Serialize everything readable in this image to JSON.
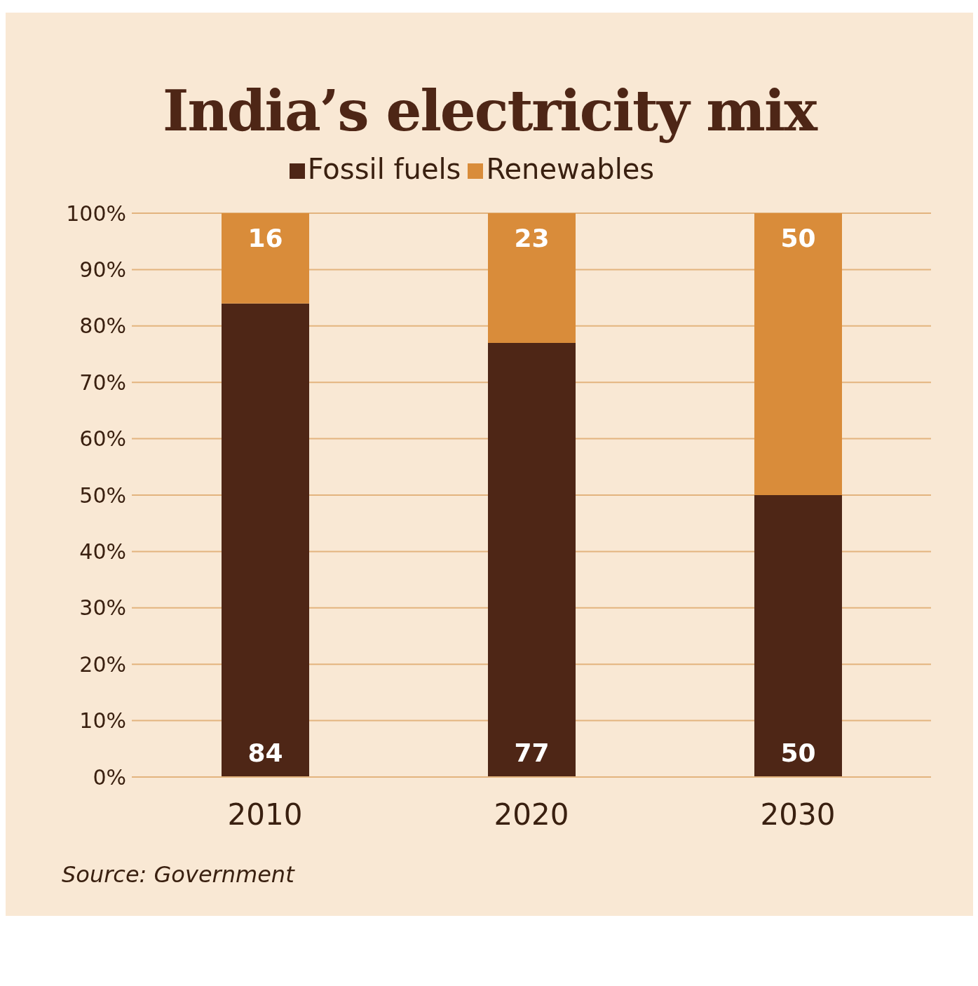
{
  "chart_data": {
    "type": "bar",
    "title": "India’s electricity mix",
    "categories": [
      "2010",
      "2020",
      "2030"
    ],
    "series": [
      {
        "name": "Fossil fuels",
        "color": "#4e2616",
        "values": [
          84,
          77,
          50
        ]
      },
      {
        "name": "Renewables",
        "color": "#d98c3a",
        "values": [
          16,
          23,
          50
        ]
      }
    ],
    "stacked": true,
    "data_labels": true,
    "legend": "top",
    "grid": "y",
    "ylim": [
      0,
      100
    ],
    "yticks": [
      {
        "value": 0,
        "label": "0%"
      },
      {
        "value": 10,
        "label": "10%"
      },
      {
        "value": 20,
        "label": "20%"
      },
      {
        "value": 30,
        "label": "30%"
      },
      {
        "value": 40,
        "label": "40%"
      },
      {
        "value": 50,
        "label": "50%"
      },
      {
        "value": 60,
        "label": "60%"
      },
      {
        "value": 70,
        "label": "70%"
      },
      {
        "value": 80,
        "label": "80%"
      },
      {
        "value": 90,
        "label": "90%"
      },
      {
        "value": 100,
        "label": "100%"
      }
    ],
    "annotations": [
      "Source: Government"
    ]
  }
}
